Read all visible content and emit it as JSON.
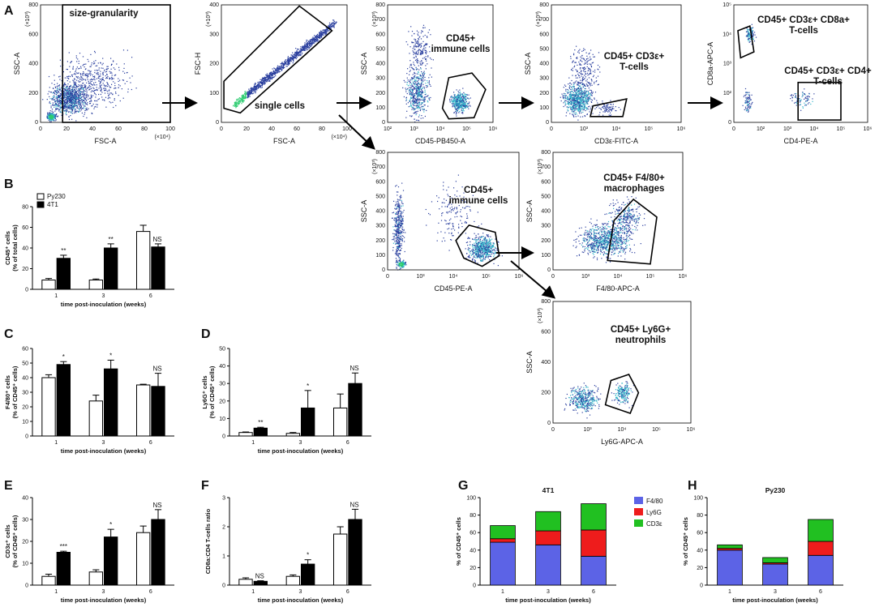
{
  "panels": {
    "A": "A",
    "B": "B",
    "C": "C",
    "D": "D",
    "E": "E",
    "F": "F",
    "G": "G",
    "H": "H"
  },
  "colors": {
    "flow_dot": "#2a3f9e",
    "flow_dense": "#33b5c9",
    "flow_core": "#2ecc71",
    "bar_open": "#ffffff",
    "bar_solid": "#000000",
    "f480": "#5c63e6",
    "ly6g": "#ee1c1c",
    "cd3e": "#21c021"
  },
  "flow_plots": [
    {
      "id": "fsc-ssc",
      "gate_label": "size-granularity",
      "xlabel": "FSC-A",
      "ylabel": "SSC-A",
      "x_mult": "(×10⁴)",
      "y_mult": "(×10³)",
      "x_ticks": [
        "0",
        "20",
        "40",
        "60",
        "80",
        "100"
      ],
      "y_ticks": [
        "0",
        "200",
        "400",
        "600",
        "800"
      ]
    },
    {
      "id": "fsc-single",
      "gate_label": "single cells",
      "xlabel": "FSC-A",
      "ylabel": "FSC-H",
      "x_mult": "(×10⁴)",
      "y_mult": "(×10³)",
      "x_ticks": [
        "0",
        "20",
        "40",
        "60",
        "80",
        "100"
      ],
      "y_ticks": [
        "0",
        "100",
        "200",
        "300",
        "400"
      ]
    },
    {
      "id": "cd45-pb450",
      "gate_label": [
        "CD45+",
        "immune cells"
      ],
      "xlabel": "CD45-PB450-A",
      "ylabel": "SSC-A",
      "y_mult": "(×10³)",
      "x_ticks": [
        "10²",
        "10³",
        "10⁴",
        "10⁵",
        "10⁶"
      ],
      "y_ticks": [
        "0",
        "100",
        "200",
        "300",
        "400",
        "500",
        "600",
        "700",
        "800"
      ]
    },
    {
      "id": "cd3e",
      "gate_label": [
        "CD45+ CD3ε+",
        "T-cells"
      ],
      "xlabel": "CD3ε-FITC-A",
      "ylabel": "SSC-A",
      "y_mult": "(×10³)",
      "x_ticks": [
        "0",
        "10³",
        "10⁴",
        "10⁵",
        "10⁶"
      ],
      "y_ticks": [
        "0",
        "100",
        "200",
        "300",
        "400",
        "500",
        "600",
        "700",
        "800"
      ]
    },
    {
      "id": "cd4-cd8",
      "gate_label_top": [
        "CD45+ CD3ε+ CD8a+",
        "T-cells"
      ],
      "gate_label_bottom": [
        "CD45+ CD3ε+ CD4+",
        "T-cells"
      ],
      "xlabel": "CD4-PE-A",
      "ylabel": "CD8a-APC-A",
      "x_ticks": [
        "0",
        "10²",
        "10³",
        "10⁴",
        "10⁵",
        "10⁶"
      ],
      "y_ticks": [
        "0",
        "10²",
        "10³",
        "10⁴",
        "10⁵"
      ]
    },
    {
      "id": "cd45-pe",
      "gate_label": [
        "CD45+",
        "immune cells"
      ],
      "xlabel": "CD45-PE-A",
      "ylabel": "SSC-A",
      "y_mult": "(×10³)",
      "x_ticks": [
        "0",
        "10³",
        "10⁴",
        "10⁵",
        "10⁶"
      ],
      "y_ticks": [
        "0",
        "100",
        "200",
        "300",
        "400",
        "500",
        "600",
        "700",
        "800"
      ]
    },
    {
      "id": "f480",
      "gate_label": [
        "CD45+ F4/80+",
        "macrophages"
      ],
      "xlabel": "F4/80-APC-A",
      "ylabel": "SSC-A",
      "y_mult": "(×10³)",
      "x_ticks": [
        "0",
        "10³",
        "10⁴",
        "10⁵",
        "10⁶"
      ],
      "y_ticks": [
        "0",
        "100",
        "200",
        "300",
        "400",
        "500",
        "600",
        "700",
        "800"
      ]
    },
    {
      "id": "ly6g",
      "gate_label": [
        "CD45+ Ly6G+",
        "neutrophils"
      ],
      "xlabel": "Ly6G-APC-A",
      "ylabel": "SSC-A",
      "y_mult": "(×10³)",
      "x_ticks": [
        "0",
        "10³",
        "10⁴",
        "10⁵",
        "10⁶"
      ],
      "y_ticks": [
        "0",
        "200",
        "400",
        "600",
        "800"
      ]
    }
  ],
  "chart_data": [
    {
      "panel": "B",
      "type": "bar",
      "categories": [
        "1",
        "3",
        "6"
      ],
      "xlabel": "time post-inoculation (weeks)",
      "ylabel": [
        "CD45⁺ cells",
        "(% of total cells)"
      ],
      "ylim": [
        0,
        80
      ],
      "yticks": [
        "0",
        "20",
        "40",
        "60",
        "80"
      ],
      "legend": [
        "Py230",
        "4T1"
      ],
      "series": [
        {
          "name": "Py230",
          "values": [
            9,
            9,
            56
          ],
          "errors": [
            1.5,
            1,
            6
          ]
        },
        {
          "name": "4T1",
          "values": [
            30,
            40,
            41
          ],
          "errors": [
            3,
            4,
            3
          ]
        }
      ],
      "significance": [
        "**",
        "**",
        "NS"
      ]
    },
    {
      "panel": "C",
      "type": "bar",
      "categories": [
        "1",
        "3",
        "6"
      ],
      "xlabel": "time post-inoculation (weeks)",
      "ylabel": [
        "F4/80⁺ cells",
        "(% of CD45⁺ cells)"
      ],
      "ylim": [
        0,
        60
      ],
      "yticks": [
        "0",
        "10",
        "20",
        "30",
        "40",
        "50",
        "60"
      ],
      "series": [
        {
          "name": "Py230",
          "values": [
            40,
            24,
            35
          ],
          "errors": [
            2,
            4,
            0.5
          ]
        },
        {
          "name": "4T1",
          "values": [
            49,
            46,
            34
          ],
          "errors": [
            2,
            6,
            9
          ]
        }
      ],
      "significance": [
        "*",
        "*",
        "NS"
      ]
    },
    {
      "panel": "D",
      "type": "bar",
      "categories": [
        "1",
        "3",
        "6"
      ],
      "xlabel": "time post-inoculation (weeks)",
      "ylabel": [
        "Ly6G⁺ cells",
        "(% of CD45⁺ cells)"
      ],
      "ylim": [
        0,
        50
      ],
      "yticks": [
        "0",
        "10",
        "20",
        "30",
        "40",
        "50"
      ],
      "series": [
        {
          "name": "Py230",
          "values": [
            2,
            1.5,
            16
          ],
          "errors": [
            0.3,
            0.5,
            8
          ]
        },
        {
          "name": "4T1",
          "values": [
            4.5,
            16,
            30
          ],
          "errors": [
            0.5,
            10,
            6
          ]
        }
      ],
      "significance": [
        "**",
        "*",
        "NS"
      ]
    },
    {
      "panel": "E",
      "type": "bar",
      "categories": [
        "1",
        "3",
        "6"
      ],
      "xlabel": "time post-inoculation (weeks)",
      "ylabel": [
        "CD3ε⁺ cells",
        "(% of CD45⁺ cells)"
      ],
      "ylim": [
        0,
        40
      ],
      "yticks": [
        "0",
        "10",
        "20",
        "30",
        "40"
      ],
      "series": [
        {
          "name": "Py230",
          "values": [
            4,
            6,
            24
          ],
          "errors": [
            1,
            1,
            3
          ]
        },
        {
          "name": "4T1",
          "values": [
            15,
            22,
            30
          ],
          "errors": [
            0.5,
            3.5,
            4.5
          ]
        }
      ],
      "significance": [
        "***",
        "*",
        "NS"
      ]
    },
    {
      "panel": "F",
      "type": "bar",
      "categories": [
        "1",
        "3",
        "6"
      ],
      "xlabel": "time post-inoculation (weeks)",
      "ylabel": [
        "CD8a:CD4 T-cells ratio"
      ],
      "ylim": [
        0,
        3
      ],
      "yticks": [
        "0",
        "1",
        "2",
        "3"
      ],
      "series": [
        {
          "name": "Py230",
          "values": [
            0.2,
            0.3,
            1.75
          ],
          "errors": [
            0.05,
            0.05,
            0.25
          ]
        },
        {
          "name": "4T1",
          "values": [
            0.13,
            0.72,
            2.25
          ],
          "errors": [
            0.02,
            0.15,
            0.35
          ]
        }
      ],
      "significance": [
        "NS",
        "*",
        "NS"
      ]
    },
    {
      "panel": "G",
      "type": "bar",
      "stacked": true,
      "title": "4T1",
      "categories": [
        "1",
        "3",
        "6"
      ],
      "xlabel": "time post-inoculation (weeks)",
      "ylabel": [
        "% of CD45⁺ cells"
      ],
      "ylim": [
        0,
        100
      ],
      "yticks": [
        "0",
        "20",
        "40",
        "60",
        "80",
        "100"
      ],
      "legend": [
        "F4/80",
        "Ly6G",
        "CD3ε"
      ],
      "series": [
        {
          "name": "F4/80",
          "values": [
            49,
            46,
            33
          ]
        },
        {
          "name": "Ly6G",
          "values": [
            4,
            16,
            30
          ]
        },
        {
          "name": "CD3ε",
          "values": [
            15,
            22,
            30
          ]
        }
      ]
    },
    {
      "panel": "H",
      "type": "bar",
      "stacked": true,
      "title": "Py230",
      "categories": [
        "1",
        "3",
        "6"
      ],
      "xlabel": "time post-inoculation (weeks)",
      "ylabel": [
        "% of CD45⁺ cells"
      ],
      "ylim": [
        0,
        100
      ],
      "yticks": [
        "0",
        "20",
        "40",
        "60",
        "80",
        "100"
      ],
      "series": [
        {
          "name": "F4/80",
          "values": [
            40,
            24,
            34
          ]
        },
        {
          "name": "Ly6G",
          "values": [
            2,
            1.5,
            16
          ]
        },
        {
          "name": "CD3ε",
          "values": [
            4,
            6,
            25
          ]
        }
      ]
    }
  ]
}
